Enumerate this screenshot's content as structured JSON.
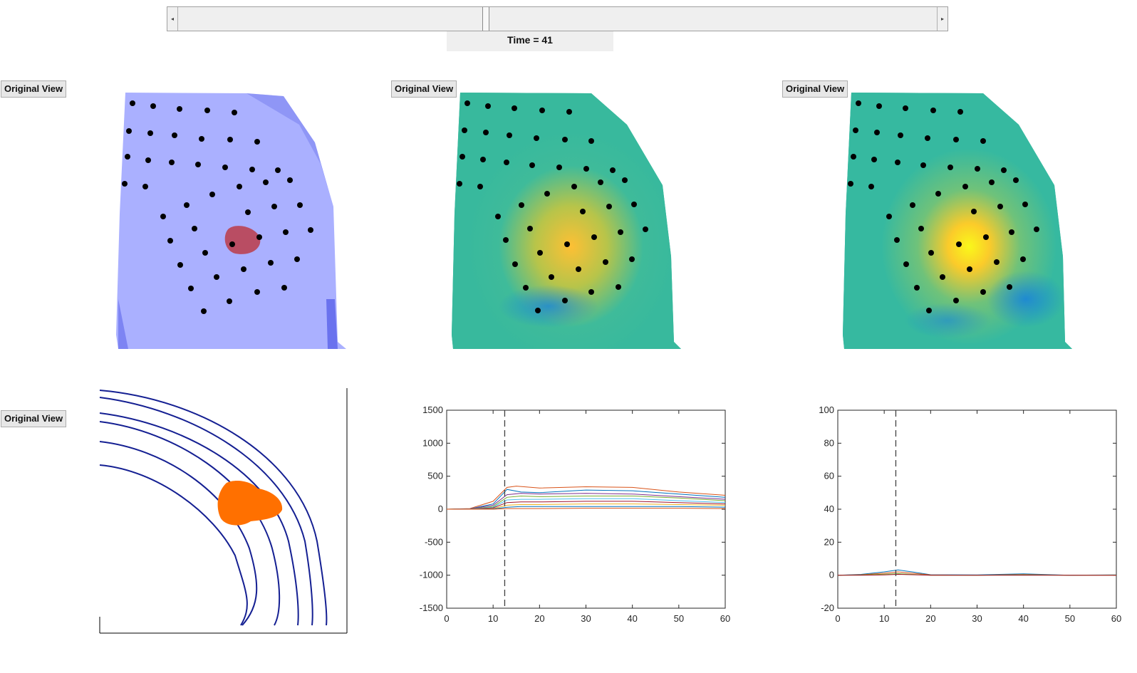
{
  "time_label": "Time = 41",
  "slider": {
    "value_fraction": 0.41
  },
  "buttons": {
    "original_view": "Original View"
  },
  "colors": {
    "purple_mesh": "#aab0ff",
    "parula_base": "#3ab89c",
    "hot": "#f7e016",
    "blue_lines": "#141f92",
    "orange_blob": "#ff7000"
  },
  "chart_data": [
    {
      "type": "line",
      "title": "",
      "xlabel": "",
      "ylabel": "",
      "xlim": [
        0,
        60
      ],
      "ylim": [
        -1500,
        1500
      ],
      "xticks": [
        0,
        10,
        20,
        30,
        40,
        50,
        60
      ],
      "yticks": [
        1500,
        1000,
        500,
        0,
        -500,
        -1000,
        -1500
      ],
      "marker_x": 12.5,
      "series": [
        {
          "values": [
            [
              0,
              0
            ],
            [
              5,
              10
            ],
            [
              10,
              120
            ],
            [
              13,
              330
            ],
            [
              15,
              350
            ],
            [
              20,
              320
            ],
            [
              30,
              340
            ],
            [
              40,
              330
            ],
            [
              50,
              260
            ],
            [
              60,
              210
            ]
          ],
          "color": "#d95319"
        },
        {
          "values": [
            [
              0,
              0
            ],
            [
              5,
              5
            ],
            [
              10,
              80
            ],
            [
              13,
              300
            ],
            [
              16,
              260
            ],
            [
              20,
              250
            ],
            [
              30,
              290
            ],
            [
              40,
              280
            ],
            [
              50,
              230
            ],
            [
              60,
              180
            ]
          ],
          "color": "#0072bd"
        },
        {
          "values": [
            [
              0,
              0
            ],
            [
              5,
              5
            ],
            [
              10,
              60
            ],
            [
              13,
              220
            ],
            [
              16,
              240
            ],
            [
              20,
              230
            ],
            [
              30,
              240
            ],
            [
              40,
              230
            ],
            [
              50,
              190
            ],
            [
              60,
              150
            ]
          ],
          "color": "#7e2f8e"
        },
        {
          "values": [
            [
              0,
              0
            ],
            [
              5,
              3
            ],
            [
              10,
              40
            ],
            [
              13,
              180
            ],
            [
              16,
              200
            ],
            [
              20,
              190
            ],
            [
              30,
              200
            ],
            [
              40,
              200
            ],
            [
              50,
              170
            ],
            [
              60,
              130
            ]
          ],
          "color": "#77ac30"
        },
        {
          "values": [
            [
              0,
              0
            ],
            [
              5,
              2
            ],
            [
              10,
              30
            ],
            [
              13,
              140
            ],
            [
              16,
              150
            ],
            [
              20,
              150
            ],
            [
              30,
              160
            ],
            [
              40,
              160
            ],
            [
              50,
              130
            ],
            [
              60,
              100
            ]
          ],
          "color": "#4dbeee"
        },
        {
          "values": [
            [
              0,
              0
            ],
            [
              5,
              2
            ],
            [
              10,
              20
            ],
            [
              13,
              100
            ],
            [
              16,
              110
            ],
            [
              20,
              110
            ],
            [
              30,
              120
            ],
            [
              40,
              120
            ],
            [
              50,
              100
            ],
            [
              60,
              80
            ]
          ],
          "color": "#a2142f"
        },
        {
          "values": [
            [
              0,
              0
            ],
            [
              5,
              1
            ],
            [
              10,
              10
            ],
            [
              13,
              60
            ],
            [
              16,
              70
            ],
            [
              20,
              70
            ],
            [
              30,
              80
            ],
            [
              40,
              80
            ],
            [
              50,
              70
            ],
            [
              60,
              60
            ]
          ],
          "color": "#edb120"
        },
        {
          "values": [
            [
              0,
              0
            ],
            [
              5,
              1
            ],
            [
              10,
              5
            ],
            [
              13,
              30
            ],
            [
              16,
              40
            ],
            [
              20,
              40
            ],
            [
              30,
              40
            ],
            [
              40,
              40
            ],
            [
              50,
              40
            ],
            [
              60,
              30
            ]
          ],
          "color": "#0072bd"
        },
        {
          "values": [
            [
              0,
              0
            ],
            [
              5,
              0
            ],
            [
              10,
              0
            ],
            [
              13,
              10
            ],
            [
              16,
              10
            ],
            [
              20,
              10
            ],
            [
              30,
              15
            ],
            [
              40,
              15
            ],
            [
              50,
              15
            ],
            [
              60,
              10
            ]
          ],
          "color": "#d95319"
        }
      ]
    },
    {
      "type": "line",
      "title": "",
      "xlabel": "",
      "ylabel": "",
      "xlim": [
        0,
        60
      ],
      "ylim": [
        -20,
        100
      ],
      "xticks": [
        0,
        10,
        20,
        30,
        40,
        50,
        60
      ],
      "yticks": [
        100,
        80,
        60,
        40,
        20,
        0,
        -20
      ],
      "marker_x": 12.5,
      "series": [
        {
          "values": [
            [
              0,
              0
            ],
            [
              5,
              0.5
            ],
            [
              10,
              2
            ],
            [
              13,
              3.2
            ],
            [
              16,
              2
            ],
            [
              20,
              0.3
            ],
            [
              30,
              0.2
            ],
            [
              40,
              0.8
            ],
            [
              50,
              0
            ],
            [
              60,
              0.2
            ]
          ],
          "color": "#0072bd"
        },
        {
          "values": [
            [
              0,
              0
            ],
            [
              5,
              0.3
            ],
            [
              10,
              1.2
            ],
            [
              13,
              2
            ],
            [
              16,
              1.2
            ],
            [
              20,
              0.2
            ],
            [
              30,
              0
            ],
            [
              40,
              0.4
            ],
            [
              50,
              0
            ],
            [
              60,
              0
            ]
          ],
          "color": "#d95319"
        },
        {
          "values": [
            [
              0,
              0
            ],
            [
              5,
              0.1
            ],
            [
              10,
              0.6
            ],
            [
              13,
              1
            ],
            [
              16,
              0.5
            ],
            [
              20,
              0
            ],
            [
              30,
              0
            ],
            [
              40,
              0.2
            ],
            [
              50,
              0
            ],
            [
              60,
              0.1
            ]
          ],
          "color": "#77ac30"
        },
        {
          "values": [
            [
              0,
              0
            ],
            [
              5,
              0
            ],
            [
              10,
              0.2
            ],
            [
              13,
              0.5
            ],
            [
              16,
              0.3
            ],
            [
              20,
              0
            ],
            [
              30,
              0
            ],
            [
              40,
              0
            ],
            [
              50,
              0
            ],
            [
              60,
              0
            ]
          ],
          "color": "#a2142f"
        }
      ]
    }
  ]
}
